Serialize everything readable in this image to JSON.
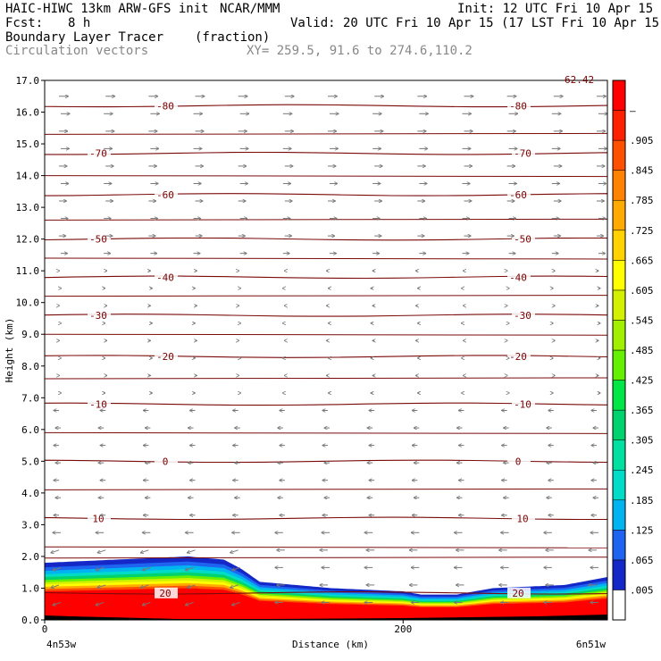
{
  "header": {
    "model": "HAIC-HIWC 13km ARW-GFS init",
    "org": "NCAR/MMM",
    "init": "Init: 12 UTC Fri 10 Apr 15",
    "fcst_label": "Fcst:",
    "fcst_value": "8 h",
    "valid": "Valid: 20 UTC Fri 10 Apr 15 (17 LST Fri 10 Apr 15)",
    "field": "Boundary Layer Tracer",
    "units": "(fraction)",
    "overlay": "Circulation vectors",
    "xy": "XY= 259.5, 91.6 to 274.6,110.2",
    "corner_label": "62.42"
  },
  "chart_data": {
    "type": "heatmap",
    "xlabel": "Distance (km)",
    "ylabel": "Height (km)",
    "xlim": [
      0,
      314
    ],
    "ylim": [
      0,
      17
    ],
    "x_ticks": [
      {
        "v": 0,
        "t": "0"
      },
      {
        "v": 200,
        "t": "200"
      }
    ],
    "x_end_labels": {
      "left": "4n53w",
      "right": "6n51w"
    },
    "y_ticks": [
      "0.0",
      "1.0",
      "2.0",
      "3.0",
      "4.0",
      "5.0",
      "6.0",
      "7.0",
      "8.0",
      "9.0",
      "10.0",
      "11.0",
      "12.0",
      "13.0",
      "14.0",
      "15.0",
      "16.0",
      "17.0"
    ],
    "colorbar": {
      "labels": [
        ".005",
        ".065",
        ".125",
        ".185",
        ".245",
        ".305",
        ".365",
        ".425",
        ".485",
        ".545",
        ".605",
        ".665",
        ".725",
        ".785",
        ".845",
        ".905",
        "–"
      ],
      "colors": [
        "#ffffff",
        "#1428c8",
        "#1e64f0",
        "#00b4f0",
        "#00dcc8",
        "#00e0a0",
        "#00d26e",
        "#00e646",
        "#64f000",
        "#a0f000",
        "#d2f000",
        "#ffff00",
        "#ffd200",
        "#ffaa00",
        "#ff8200",
        "#ff5000",
        "#ff2000",
        "#ff0000"
      ]
    },
    "temperature_contours": [
      {
        "label": "-80",
        "z": 16.2
      },
      {
        "label": "-70",
        "z": 14.7
      },
      {
        "label": "-60",
        "z": 13.4
      },
      {
        "label": "-50",
        "z": 12.0
      },
      {
        "label": "-40",
        "z": 10.8
      },
      {
        "label": "-30",
        "z": 9.6
      },
      {
        "label": "-20",
        "z": 8.3
      },
      {
        "label": "-10",
        "z": 6.8
      },
      {
        "label": "0",
        "z": 5.0
      },
      {
        "label": "10",
        "z": 3.2
      },
      {
        "label": "20",
        "z": 0.85
      }
    ],
    "tracer_top_profile": {
      "x_km": [
        0,
        20,
        40,
        60,
        80,
        100,
        110,
        120,
        140,
        160,
        180,
        200,
        210,
        230,
        250,
        270,
        290,
        314
      ],
      "z_km": [
        1.8,
        1.85,
        1.9,
        1.95,
        2.0,
        1.9,
        1.6,
        1.2,
        1.1,
        1.0,
        0.95,
        0.9,
        0.8,
        0.8,
        1.0,
        1.05,
        1.1,
        1.35
      ]
    }
  }
}
